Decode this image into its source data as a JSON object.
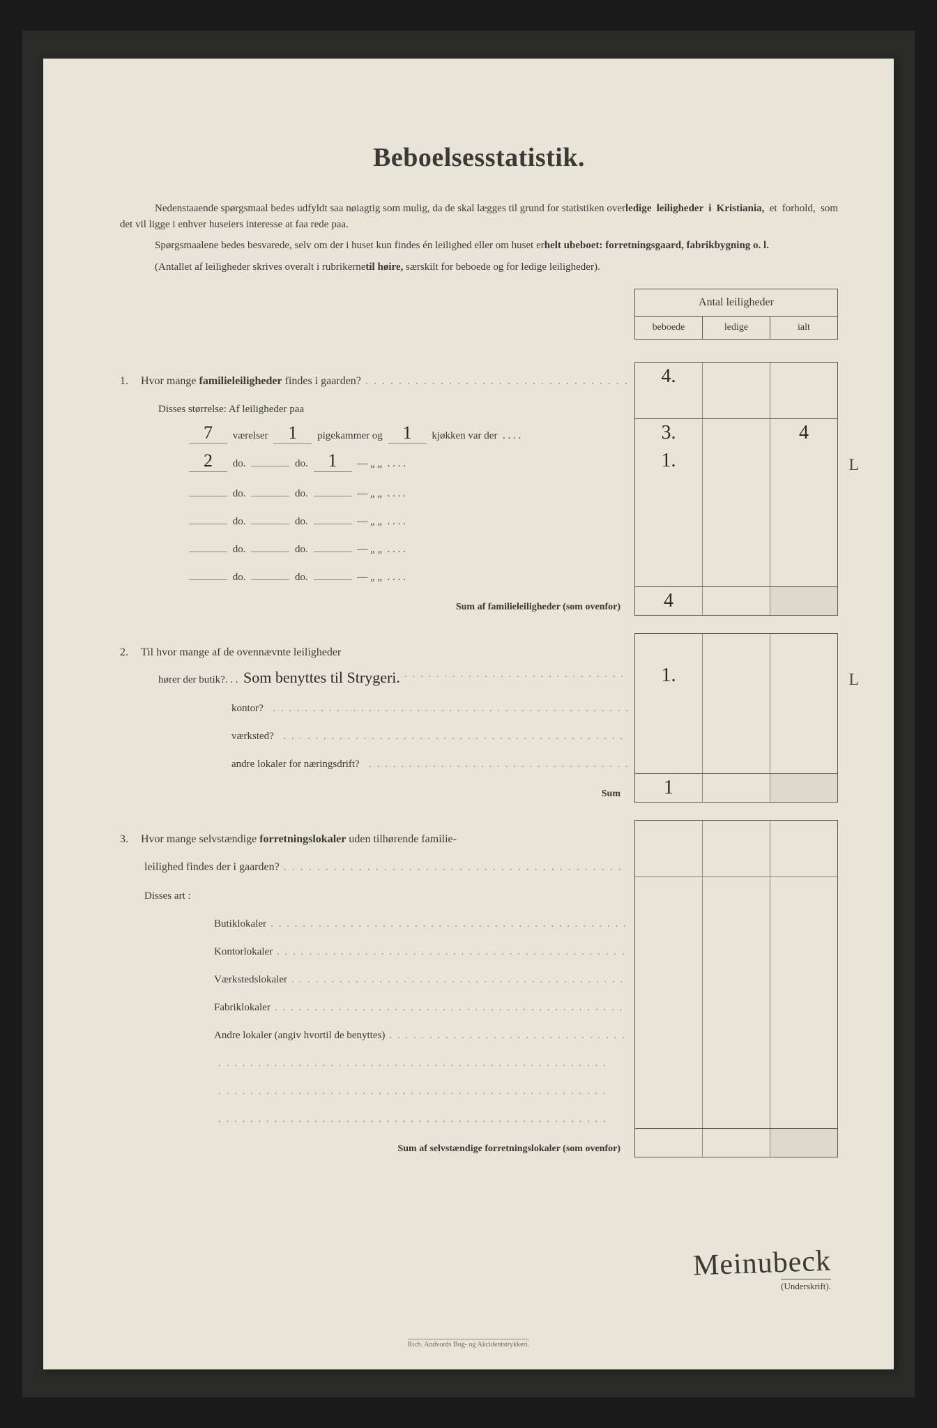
{
  "title": "Beboelsesstatistik.",
  "intro1_a": "Nedenstaaende spørgsmaal bedes udfyldt saa nøiagtig som mulig, da de skal lægges til grund for statistiken over ",
  "intro1_b": "ledige leiligheder i Kristiania,",
  "intro1_c": " et forhold, som det vil ligge i enhver huseiers interesse at faa rede paa.",
  "intro2_a": "Spørgsmaalene bedes besvarede, selv om der i huset kun findes én leilighed eller om huset er ",
  "intro2_b": "helt ubeboet: forretningsgaard, fabrikbygning o. l.",
  "intro3": "(Antallet af leiligheder skrives overalt i rubrikerne ",
  "intro3_b": "til høire,",
  "intro3_c": " særskilt for beboede og for ledige leiligheder).",
  "header_title": "Antal leiligheder",
  "header_cols": {
    "c1": "beboede",
    "c2": "ledige",
    "c3": "ialt"
  },
  "q1": {
    "num": "1.",
    "text": "Hvor mange ",
    "bold": "familieleiligheder",
    "text2": " findes i gaarden?",
    "val_beboede": "4.",
    "sub": "Disses størrelse:   Af leiligheder paa",
    "rows": [
      {
        "v": "7",
        "p": "1",
        "k": "1",
        "unit": "værelser",
        "mid": "pigekammer og",
        "end": "kjøkken var der",
        "b": "3.",
        "l": "",
        "i": "4",
        "m": ""
      },
      {
        "v": "2",
        "p": "",
        "k": "1",
        "unit": "do.",
        "mid": "do.",
        "end": "—      „    „",
        "b": "1.",
        "l": "",
        "i": "",
        "m": "L"
      },
      {
        "v": "",
        "p": "",
        "k": "",
        "unit": "do.",
        "mid": "do.",
        "end": "—      „    „",
        "b": "",
        "l": "",
        "i": "",
        "m": ""
      },
      {
        "v": "",
        "p": "",
        "k": "",
        "unit": "do.",
        "mid": "do.",
        "end": "—      „    „",
        "b": "",
        "l": "",
        "i": "",
        "m": ""
      },
      {
        "v": "",
        "p": "",
        "k": "",
        "unit": "do.",
        "mid": "do.",
        "end": "—      „    „",
        "b": "",
        "l": "",
        "i": "",
        "m": ""
      },
      {
        "v": "",
        "p": "",
        "k": "",
        "unit": "do.",
        "mid": "do.",
        "end": "—      „    „",
        "b": "",
        "l": "",
        "i": "",
        "m": ""
      }
    ],
    "sum_label": "Sum af familieleiligheder (som ovenfor)",
    "sum_val": "4"
  },
  "q2": {
    "num": "2.",
    "text": "Til hvor mange af de ovennævnte leiligheder",
    "rows": [
      {
        "label": "hører der butik?. . .",
        "hw": "Som benyttes til Strygeri.",
        "b": "1.",
        "l": "",
        "i": "",
        "m": "L"
      },
      {
        "label": "kontor?",
        "hw": "",
        "b": "",
        "l": "",
        "i": "",
        "m": ""
      },
      {
        "label": "værksted?",
        "hw": "",
        "b": "",
        "l": "",
        "i": "",
        "m": ""
      },
      {
        "label": "andre lokaler for næringsdrift?",
        "hw": "",
        "b": "",
        "l": "",
        "i": "",
        "m": ""
      }
    ],
    "sum_label": "Sum",
    "sum_val": "1"
  },
  "q3": {
    "num": "3.",
    "text_a": "Hvor mange selvstændige ",
    "text_b": "forretningslokaler",
    "text_c": " uden tilhørende familie-",
    "text_d": "leilighed findes der i gaarden?",
    "sub": "Disses art :",
    "rows": [
      {
        "label": "Butiklokaler"
      },
      {
        "label": "Kontorlokaler"
      },
      {
        "label": "Værkstedslokaler"
      },
      {
        "label": "Fabriklokaler"
      },
      {
        "label": "Andre lokaler (angiv hvortil de benyttes)"
      }
    ],
    "extra_rows": 3,
    "sum_label": "Sum af selvstændige forretningslokaler (som ovenfor)"
  },
  "signature": "Meinubeck",
  "sig_label": "(Underskrift).",
  "footer": "Rich. Andvords Bog- og Akcidentstrykkeri."
}
